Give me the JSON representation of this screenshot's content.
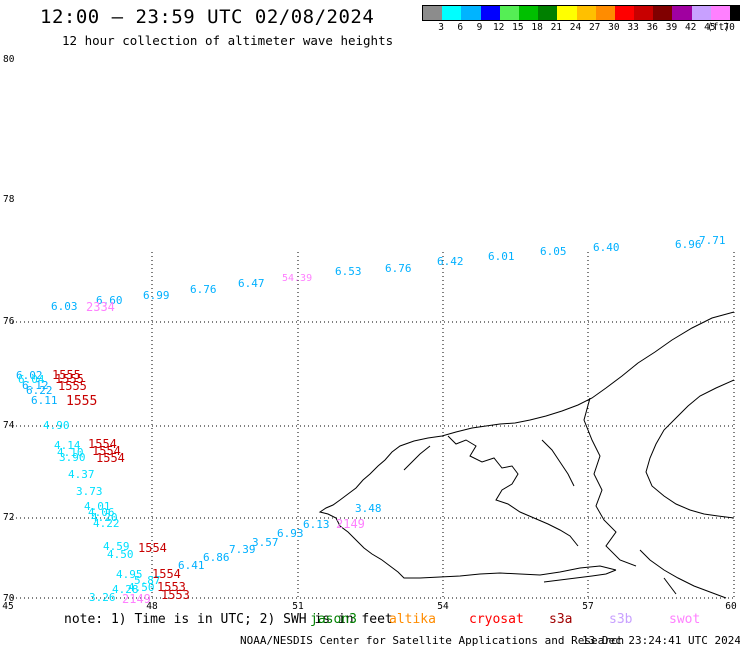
{
  "header": {
    "title": "12:00 – 23:59 UTC 02/08/2024",
    "subtitle": "12 hour collection of altimeter wave heights"
  },
  "color_scale": {
    "labels": [
      "3",
      "6",
      "9",
      "12",
      "15",
      "18",
      "21",
      "24",
      "27",
      "30",
      "33",
      "36",
      "39",
      "42",
      "45",
      "70"
    ],
    "unit": "(ft)",
    "colors": [
      "#8c8c8c",
      "#00ffff",
      "#00b4ff",
      "#0000ff",
      "#55ee55",
      "#00c000",
      "#008000",
      "#ffff00",
      "#ffc000",
      "#ff8c00",
      "#ff0000",
      "#c80000",
      "#800000",
      "#a000a0",
      "#c8a0ff",
      "#ff80ff",
      "#000000"
    ]
  },
  "axes": {
    "lon_labels": [
      "45",
      "48",
      "51",
      "54",
      "57",
      "60"
    ],
    "lat_labels": [
      "80",
      "78",
      "76",
      "74",
      "72",
      "70"
    ]
  },
  "observations": [
    {
      "text": "7.71",
      "color": "#00b0ff"
    },
    {
      "text": "6.96",
      "color": "#00b0ff"
    },
    {
      "text": "6.40",
      "color": "#00b0ff"
    },
    {
      "text": "6.05",
      "color": "#00b0ff"
    },
    {
      "text": "6.01",
      "color": "#00b0ff"
    },
    {
      "text": "6.42",
      "color": "#00b0ff"
    },
    {
      "text": "6.76",
      "color": "#00b0ff"
    },
    {
      "text": "6.53",
      "color": "#00b0ff"
    },
    {
      "text": "54.39",
      "color": "#ff80ff"
    },
    {
      "text": "6.47",
      "color": "#00b0ff"
    },
    {
      "text": "6.76",
      "color": "#00b0ff"
    },
    {
      "text": "6.99",
      "color": "#00b0ff"
    },
    {
      "text": "6.60",
      "color": "#00b0ff"
    },
    {
      "text": "6.03",
      "color": "#00b0ff"
    },
    {
      "text": "2334",
      "color": "#ff80ff"
    },
    {
      "text": "6.02",
      "color": "#00b0ff"
    },
    {
      "text": "6.04",
      "color": "#00e0ff"
    },
    {
      "text": "6.12",
      "color": "#00b0ff"
    },
    {
      "text": "6.22",
      "color": "#00b0ff"
    },
    {
      "text": "6.11",
      "color": "#00b0ff"
    },
    {
      "text": "1555",
      "color": "#c80000"
    },
    {
      "text": "1555",
      "color": "#c80000"
    },
    {
      "text": "1555",
      "color": "#c80000"
    },
    {
      "text": "1555",
      "color": "#c80000"
    },
    {
      "text": "4.90",
      "color": "#00e0ff"
    },
    {
      "text": "4.14",
      "color": "#00e0ff"
    },
    {
      "text": "4.10",
      "color": "#00e0ff"
    },
    {
      "text": "3.90",
      "color": "#00e0ff"
    },
    {
      "text": "1554",
      "color": "#c80000"
    },
    {
      "text": "1554",
      "color": "#c80000"
    },
    {
      "text": "1554",
      "color": "#c80000"
    },
    {
      "text": "4.37",
      "color": "#00e0ff"
    },
    {
      "text": "3.73",
      "color": "#00e0ff"
    },
    {
      "text": "4.01",
      "color": "#00e0ff"
    },
    {
      "text": "4.06",
      "color": "#00e0ff"
    },
    {
      "text": "4.20",
      "color": "#00e0ff"
    },
    {
      "text": "4.22",
      "color": "#00e0ff"
    },
    {
      "text": "4.59",
      "color": "#00e0ff"
    },
    {
      "text": "4.50",
      "color": "#00e0ff"
    },
    {
      "text": "1554",
      "color": "#c80000"
    },
    {
      "text": "6.86",
      "color": "#00b0ff"
    },
    {
      "text": "7.39",
      "color": "#00b0ff"
    },
    {
      "text": "3.57",
      "color": "#00b0ff"
    },
    {
      "text": "6.93",
      "color": "#00b0ff"
    },
    {
      "text": "6.13",
      "color": "#00b0ff"
    },
    {
      "text": "3.48",
      "color": "#00b0ff"
    },
    {
      "text": "2149",
      "color": "#ff80ff"
    },
    {
      "text": "6.41",
      "color": "#00b0ff"
    },
    {
      "text": "4.95",
      "color": "#00e0ff"
    },
    {
      "text": "5.87",
      "color": "#00e0ff"
    },
    {
      "text": "4.28",
      "color": "#00e0ff"
    },
    {
      "text": "4.50",
      "color": "#00e0ff"
    },
    {
      "text": "3.26",
      "color": "#00e0ff"
    },
    {
      "text": "2149",
      "color": "#ff80ff"
    },
    {
      "text": "1554",
      "color": "#c80000"
    },
    {
      "text": "1553",
      "color": "#c80000"
    },
    {
      "text": "1553",
      "color": "#c80000"
    }
  ],
  "footer": {
    "note": "note: 1) Time is in UTC; 2) SWH is in feet",
    "satellites": [
      {
        "name": "jason3",
        "color": "#008000"
      },
      {
        "name": "altika",
        "color": "#ff8c00"
      },
      {
        "name": "cryosat",
        "color": "#ff0000"
      },
      {
        "name": "s3a",
        "color": "#a00000"
      },
      {
        "name": "s3b",
        "color": "#c8a0ff"
      },
      {
        "name": "swot",
        "color": "#ff80ff"
      }
    ],
    "credit": "NOAA/NESDIS Center for Satellite Applications and Research",
    "timestamp": "13 Dec 23:24:41 UTC 2024"
  }
}
